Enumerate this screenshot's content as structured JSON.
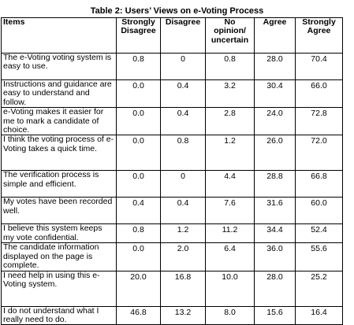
{
  "caption": "Table 2: Users’ Views on e-Voting Process",
  "columns": [
    "Items",
    "Strongly Disagree",
    "Disagree",
    "No opinion/ uncertain",
    "Agree",
    "Strongly Agree"
  ],
  "rows": [
    {
      "item": "The e-Voting voting system is easy to use.",
      "values": [
        "0.8",
        "0",
        "0.8",
        "28.0",
        "70.4"
      ]
    },
    {
      "item": "Instructions and guidance are easy to understand and follow.",
      "values": [
        "0.0",
        "0.4",
        "3.2",
        "30.4",
        "66.0"
      ]
    },
    {
      "item": "e-Voting makes it easier for me to mark a candidate of choice.",
      "values": [
        "0.0",
        "0.4",
        "2.8",
        "24.0",
        "72.8"
      ]
    },
    {
      "item": "I think the voting process of e-Voting takes a quick time.",
      "values": [
        "0.0",
        "0.8",
        "1.2",
        "26.0",
        "72.0"
      ]
    },
    {
      "item": "The verification process is simple and efficient.",
      "values": [
        "0.0",
        "0",
        "4.4",
        "28.8",
        "66.8"
      ]
    },
    {
      "item": "My votes have been recorded well.",
      "values": [
        "0.4",
        "0.4",
        "7.6",
        "31.6",
        "60.0"
      ]
    },
    {
      "item": "I believe this system keeps my vote confidential.",
      "values": [
        "0.8",
        "1.2",
        "11.2",
        "34.4",
        "52.4"
      ]
    },
    {
      "item": "The candidate information displayed on the page is complete.",
      "values": [
        "0.0",
        "2.0",
        "6.4",
        "36.0",
        "55.6"
      ]
    },
    {
      "item": "I need help in using this e-Voting system.",
      "values": [
        "20.0",
        "16.8",
        "10.0",
        "28.0",
        "25.2"
      ]
    },
    {
      "item": "I do not understand what I really need to do.",
      "values": [
        "46.8",
        "13.2",
        "8.0",
        "15.6",
        "16.4"
      ]
    }
  ]
}
